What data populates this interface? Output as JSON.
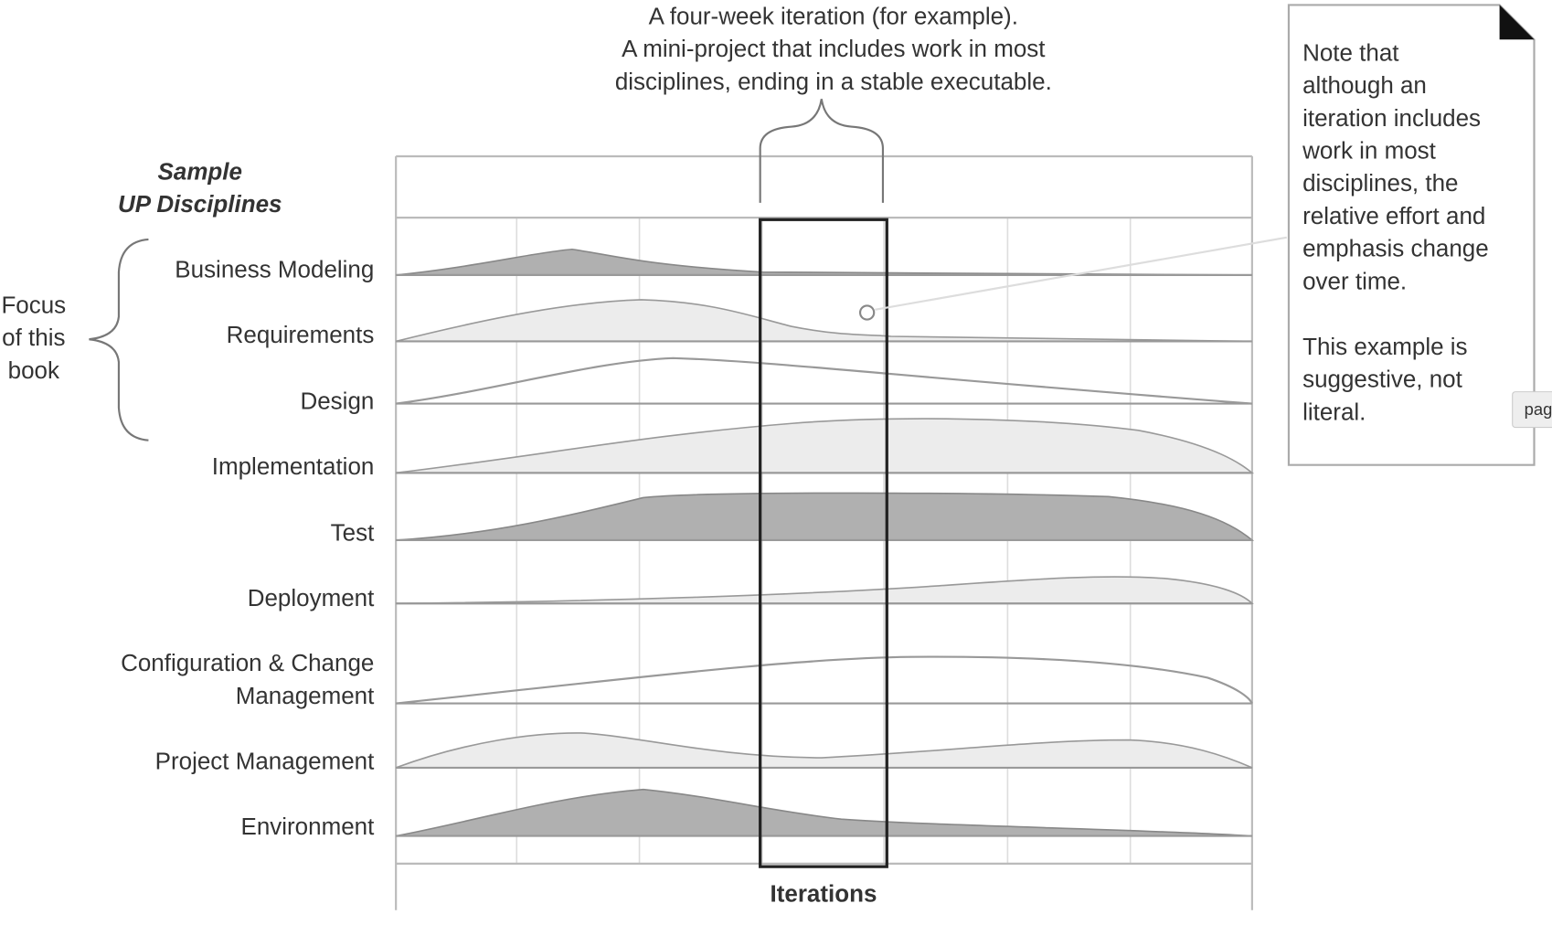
{
  "annotation": {
    "lines": [
      "A four-week iteration (for example).",
      "A mini-project that includes work in most",
      "disciplines, ending in a stable executable."
    ]
  },
  "heading": {
    "lines": [
      "Sample",
      "UP Disciplines"
    ]
  },
  "focus": {
    "lines": [
      "Focus",
      "of this",
      "book"
    ]
  },
  "disciplines": [
    [
      "Business Modeling"
    ],
    [
      "Requirements"
    ],
    [
      "Design"
    ],
    [
      "Implementation"
    ],
    [
      "Test"
    ],
    [
      "Deployment"
    ],
    [
      "Configuration & Change",
      "Management"
    ],
    [
      "Project Management"
    ],
    [
      "Environment"
    ]
  ],
  "note": {
    "paragraphs": [
      [
        "Note that",
        "although an",
        "iteration includes",
        "work in most",
        "disciplines, the",
        "relative effort and",
        "emphasis change",
        "over time."
      ],
      [
        "This example is",
        "suggestive, not",
        "literal."
      ]
    ]
  },
  "axis_label": "Iterations",
  "tooltip": "pag"
}
